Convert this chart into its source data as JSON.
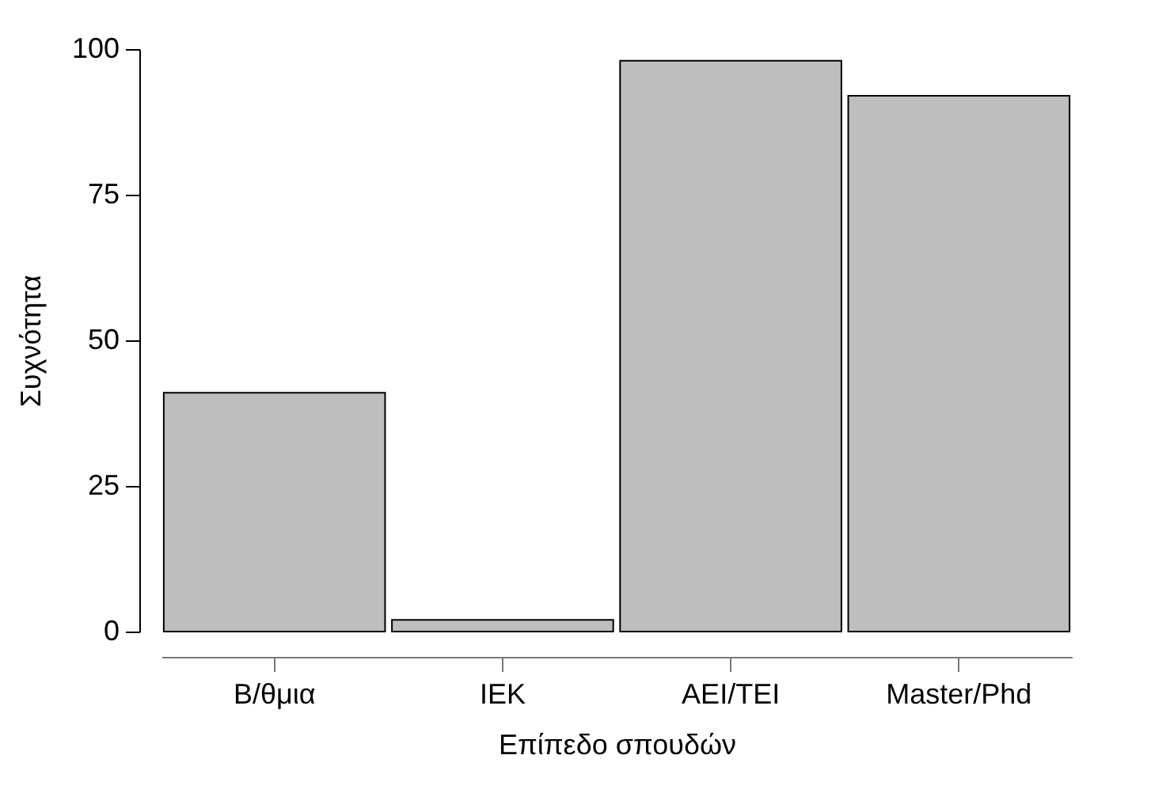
{
  "chart_data": {
    "type": "bar",
    "xlabel": "Επίπεδο σπουδών",
    "ylabel": "Συχνότητα",
    "categories": [
      "Β/θμια",
      "ΙΕΚ",
      "ΑΕΙ/ΤΕΙ",
      "Master/Phd"
    ],
    "values": [
      41,
      2,
      98,
      92
    ],
    "color": "#bebebe",
    "ylim": [
      0,
      100
    ],
    "yticks": [
      0,
      25,
      50,
      75,
      100
    ],
    "grid": false
  }
}
